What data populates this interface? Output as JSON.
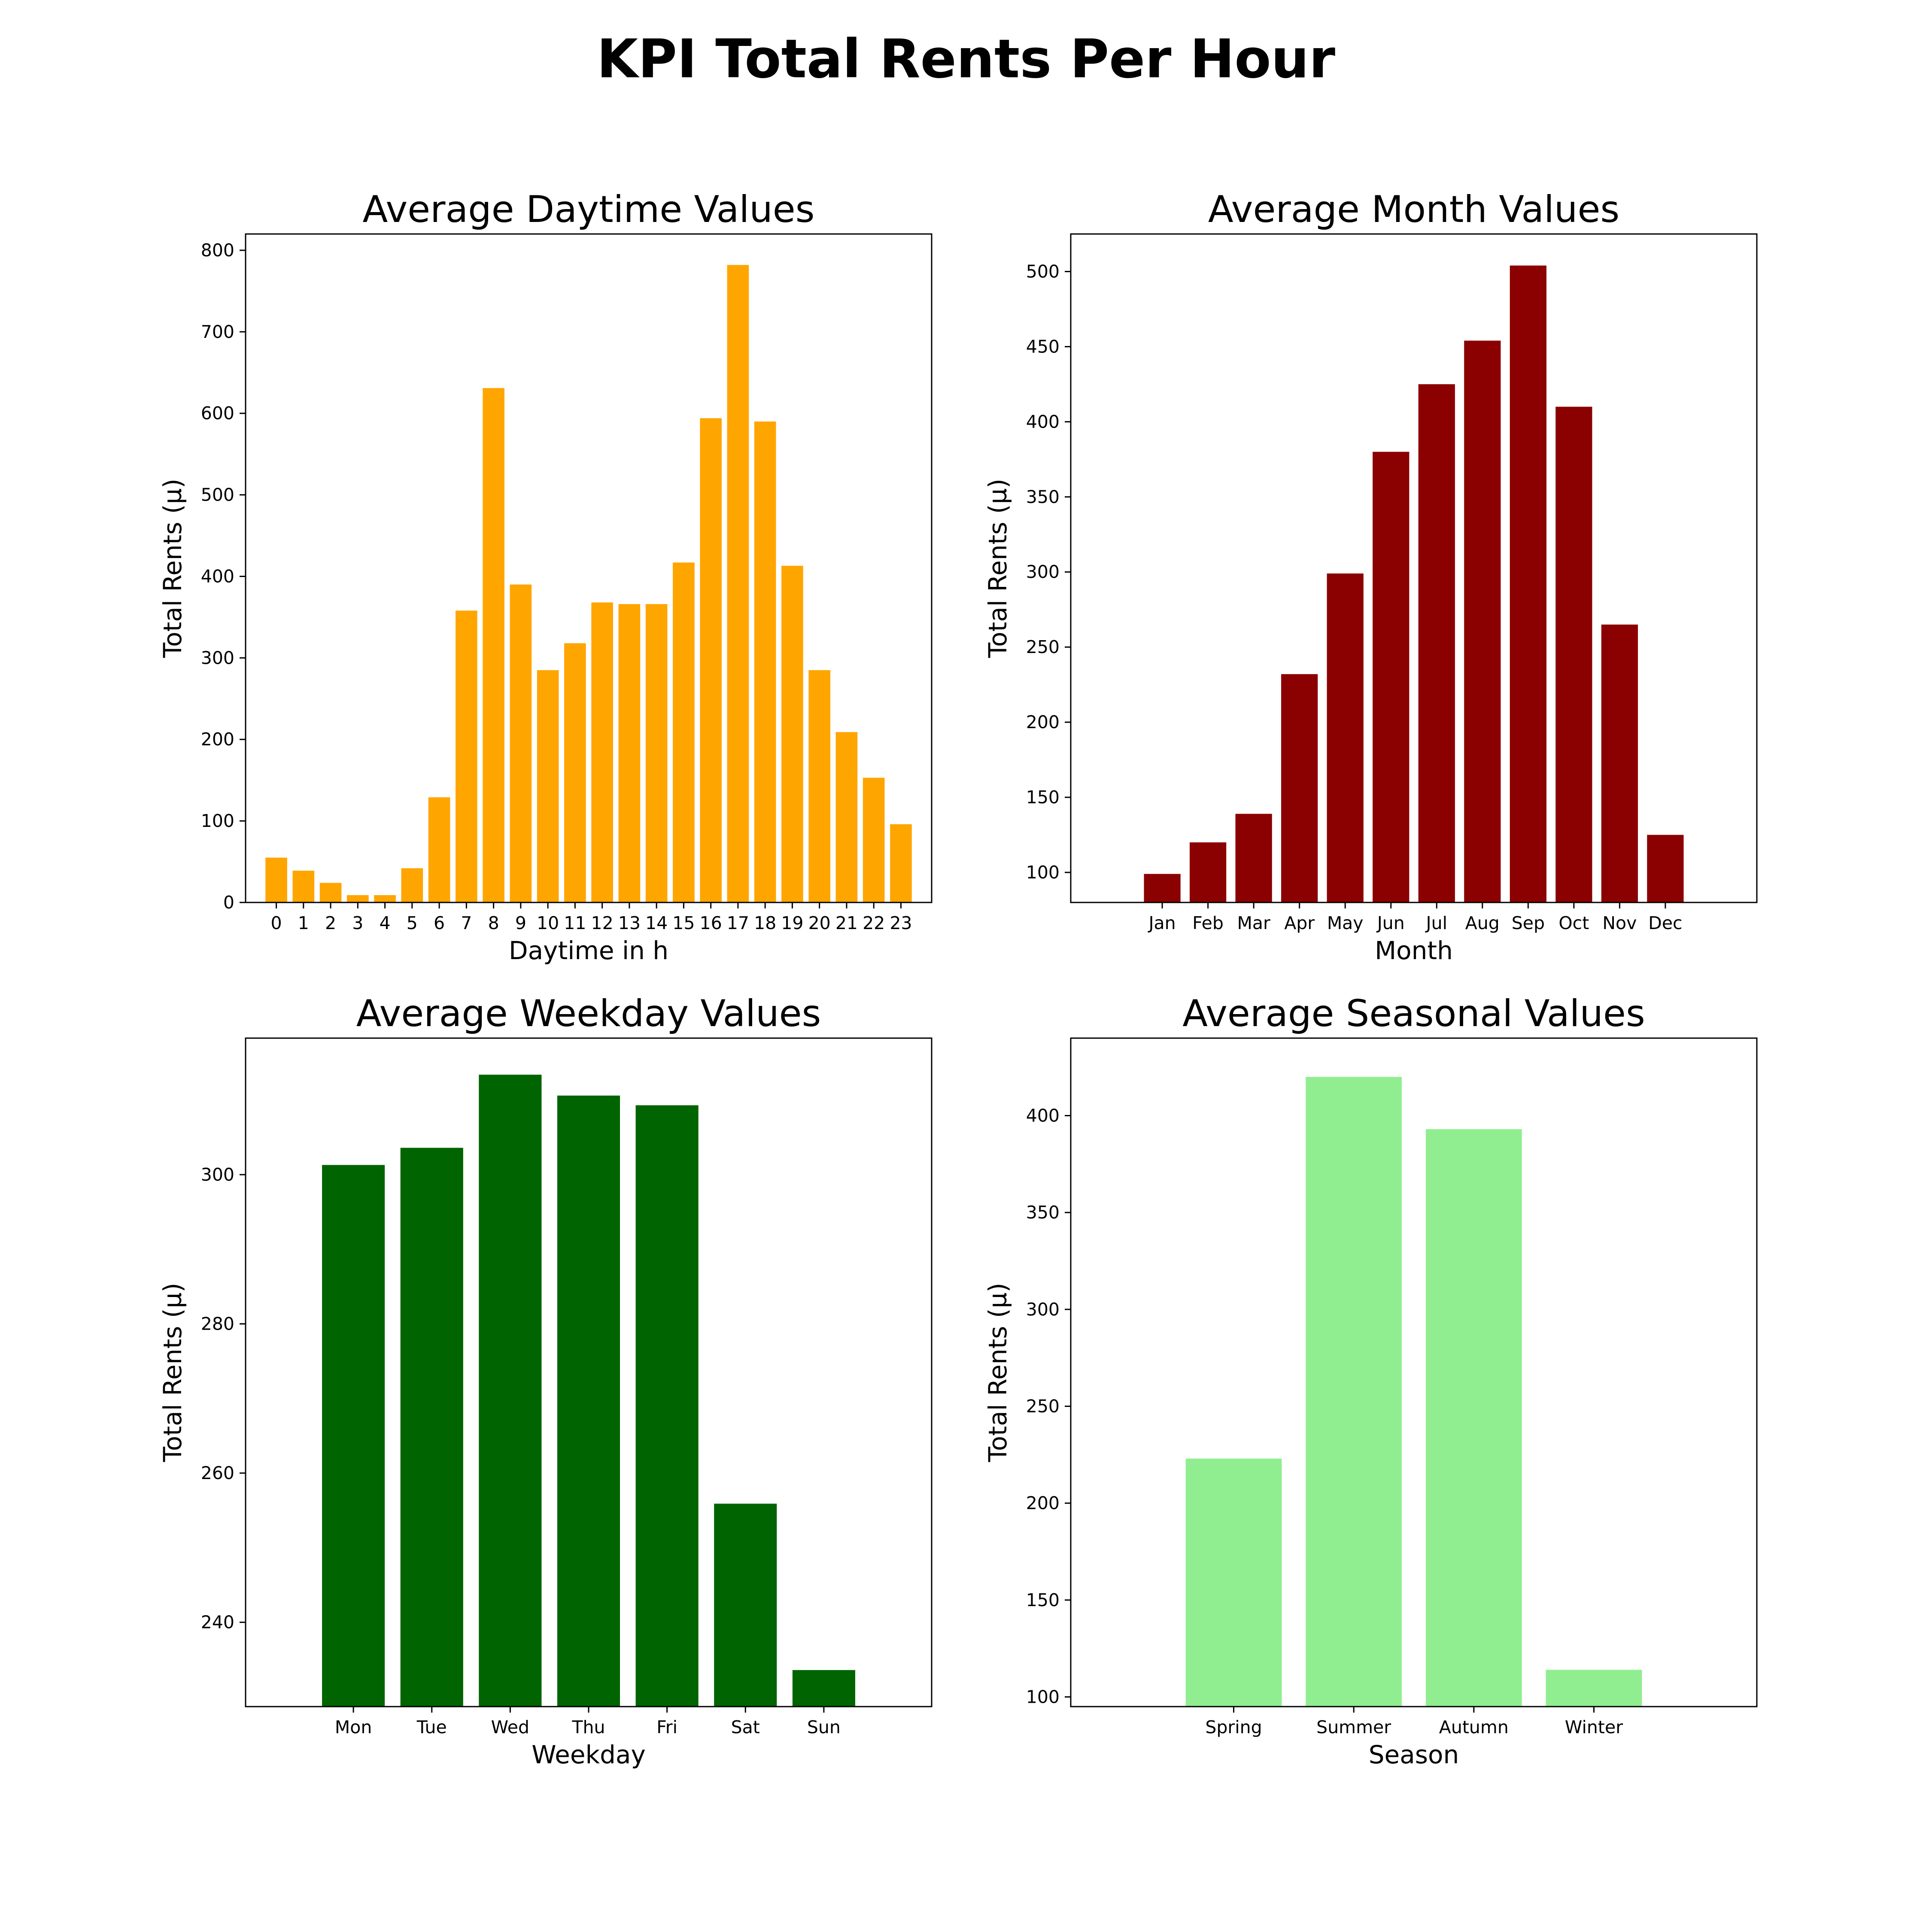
{
  "figure_title": "KPI Total Rents Per Hour",
  "chart_data": [
    {
      "type": "bar",
      "title": "Average Daytime Values",
      "xlabel": "Daytime in h",
      "ylabel": "Total Rents (µ)",
      "categories": [
        "0",
        "1",
        "2",
        "3",
        "4",
        "5",
        "6",
        "7",
        "8",
        "9",
        "10",
        "11",
        "12",
        "13",
        "14",
        "15",
        "16",
        "17",
        "18",
        "19",
        "20",
        "21",
        "22",
        "23"
      ],
      "values": [
        55,
        39,
        24,
        9,
        9,
        42,
        129,
        358,
        631,
        390,
        285,
        318,
        368,
        366,
        366,
        417,
        594,
        782,
        590,
        413,
        285,
        209,
        153,
        96
      ],
      "ylim": [
        0,
        820
      ],
      "yticks": [
        0,
        100,
        200,
        300,
        400,
        500,
        600,
        700,
        800
      ],
      "color": "#ffa500",
      "grid": false
    },
    {
      "type": "bar",
      "title": "Average Month Values",
      "xlabel": "Month",
      "ylabel": "Total Rents (µ)",
      "categories": [
        "Jan",
        "Feb",
        "Mar",
        "Apr",
        "May",
        "Jun",
        "Jul",
        "Aug",
        "Sep",
        "Oct",
        "Nov",
        "Dec"
      ],
      "values": [
        99,
        120,
        139,
        232,
        299,
        380,
        425,
        454,
        504,
        410,
        265,
        125
      ],
      "ylim": [
        80,
        525
      ],
      "yticks": [
        100,
        150,
        200,
        250,
        300,
        350,
        400,
        450,
        500
      ],
      "color": "#8b0000",
      "grid": false
    },
    {
      "type": "bar",
      "title": "Average Weekday Values",
      "xlabel": "Weekday",
      "ylabel": "Total Rents (µ)",
      "categories": [
        "Mon",
        "Tue",
        "Wed",
        "Thu",
        "Fri",
        "Sat",
        "Sun"
      ],
      "values": [
        301.3,
        303.6,
        313.4,
        310.6,
        309.3,
        255.9,
        233.6
      ],
      "ylim": [
        228.7,
        318.3
      ],
      "yticks": [
        240,
        260,
        280,
        300
      ],
      "color": "#006400",
      "grid": false
    },
    {
      "type": "bar",
      "title": "Average Seasonal Values",
      "xlabel": "Season",
      "ylabel": "Total Rents (µ)",
      "categories": [
        "Spring",
        "Summer",
        "Autumn",
        "Winter"
      ],
      "values": [
        223,
        420,
        393,
        114
      ],
      "ylim": [
        95,
        440
      ],
      "yticks": [
        100,
        150,
        200,
        250,
        300,
        350,
        400
      ],
      "color": "#90ee90",
      "grid": false
    }
  ]
}
